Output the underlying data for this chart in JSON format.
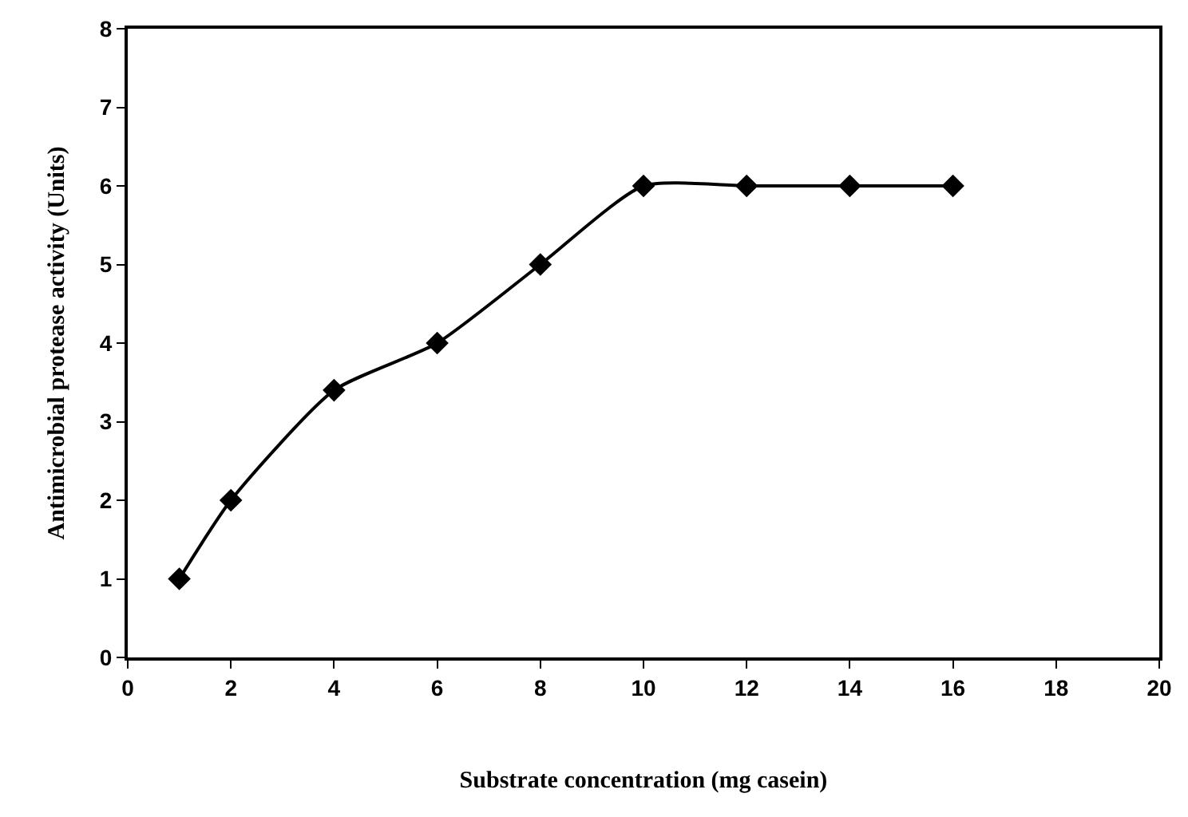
{
  "chart_data": {
    "type": "line",
    "xlabel": "Substrate concentration (mg casein)",
    "ylabel": "Antimicrobial protease activity (Units)",
    "x": [
      1,
      2,
      4,
      6,
      8,
      10,
      12,
      14,
      16
    ],
    "series": [
      {
        "color": "#000000",
        "values": [
          1,
          2,
          3.4,
          4,
          5,
          6,
          6,
          6,
          6
        ]
      }
    ],
    "xlim": [
      0,
      20
    ],
    "xticks": [
      0,
      2,
      4,
      6,
      8,
      10,
      12,
      14,
      16,
      18,
      20
    ],
    "ylim": [
      0,
      8
    ],
    "yticks": [
      0,
      1,
      2,
      3,
      4,
      5,
      6,
      7,
      8
    ],
    "marker": "diamond",
    "line_style": "solid"
  }
}
